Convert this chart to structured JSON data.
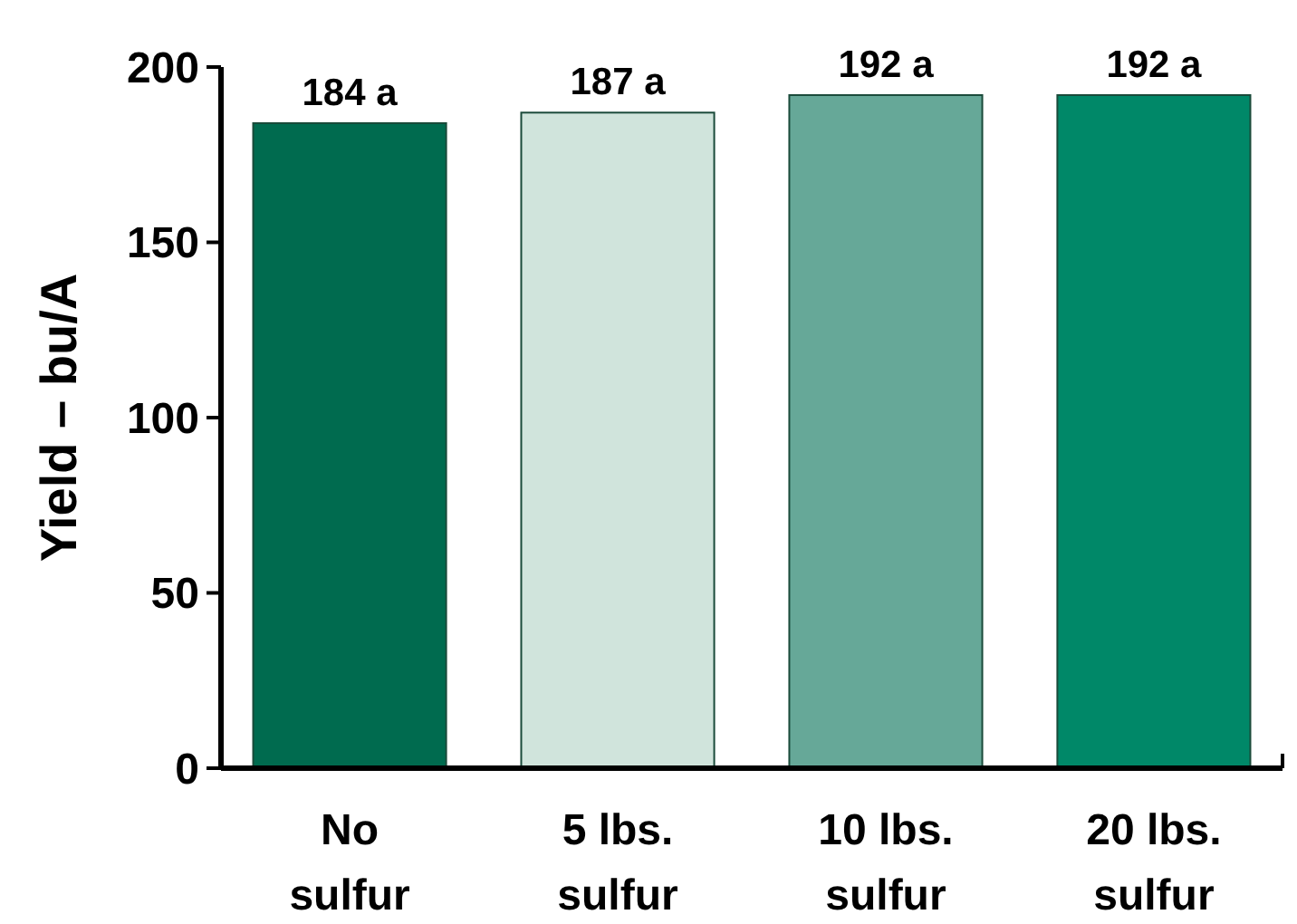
{
  "chart_data": {
    "type": "bar",
    "ylabel": "Yield – bu/A",
    "categories": [
      "No sulfur",
      "5 lbs. sulfur",
      "10 lbs. sulfur",
      "20 lbs. sulfur"
    ],
    "values": [
      184,
      187,
      192,
      192
    ],
    "colors": [
      "#006b4f",
      "#d0e4dc",
      "#66a898",
      "#008868"
    ],
    "value_labels": [
      "184 a",
      "187 a",
      "192 a",
      "192 a"
    ],
    "ylim": [
      0,
      200
    ],
    "yticks": [
      0,
      50,
      100,
      150,
      200
    ],
    "grid": false
  }
}
